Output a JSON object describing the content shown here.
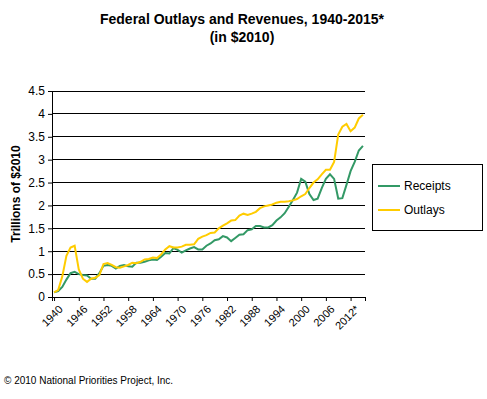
{
  "chart_data": {
    "type": "line",
    "title": "Federal Outlays and Revenues, 1940-2015*",
    "subtitle": "(in $2010)",
    "y_label": "Trillions of $2010",
    "annotations": [
      "© 2010 National Priorities Project, Inc."
    ],
    "categories": [
      "1940",
      null,
      null,
      null,
      null,
      null,
      "1946",
      null,
      null,
      null,
      null,
      null,
      "1952",
      null,
      null,
      null,
      null,
      null,
      "1958",
      null,
      null,
      null,
      null,
      null,
      "1964",
      null,
      null,
      null,
      null,
      null,
      "1970",
      null,
      null,
      null,
      null,
      null,
      "1976",
      null,
      null,
      null,
      null,
      null,
      "1982",
      null,
      null,
      null,
      null,
      null,
      "1988",
      null,
      null,
      null,
      null,
      null,
      "1994",
      null,
      null,
      null,
      null,
      null,
      "2000",
      null,
      null,
      null,
      null,
      null,
      "2006",
      null,
      null,
      null,
      null,
      null,
      "2012*",
      null,
      null,
      null
    ],
    "series": [
      {
        "name": "Receipts",
        "color": "#339966",
        "values": [
          0.1,
          0.13,
          0.22,
          0.38,
          0.52,
          0.55,
          0.5,
          0.48,
          0.47,
          0.4,
          0.4,
          0.52,
          0.68,
          0.7,
          0.68,
          0.62,
          0.68,
          0.7,
          0.67,
          0.66,
          0.75,
          0.75,
          0.77,
          0.8,
          0.82,
          0.81,
          0.88,
          0.96,
          0.95,
          1.07,
          1.03,
          0.97,
          1.02,
          1.06,
          1.09,
          1.04,
          1.04,
          1.12,
          1.17,
          1.24,
          1.26,
          1.33,
          1.3,
          1.22,
          1.29,
          1.36,
          1.37,
          1.46,
          1.48,
          1.55,
          1.55,
          1.52,
          1.52,
          1.57,
          1.67,
          1.74,
          1.83,
          1.97,
          2.12,
          2.28,
          2.58,
          2.52,
          2.25,
          2.12,
          2.15,
          2.38,
          2.58,
          2.68,
          2.58,
          2.15,
          2.16,
          2.45,
          2.75,
          2.95,
          3.2,
          3.3
        ]
      },
      {
        "name": "Outlays",
        "color": "#ffcc00",
        "values": [
          0.1,
          0.15,
          0.45,
          0.9,
          1.08,
          1.12,
          0.6,
          0.4,
          0.33,
          0.4,
          0.42,
          0.48,
          0.72,
          0.74,
          0.7,
          0.65,
          0.64,
          0.67,
          0.7,
          0.75,
          0.74,
          0.77,
          0.82,
          0.83,
          0.86,
          0.85,
          0.93,
          1.04,
          1.11,
          1.08,
          1.08,
          1.1,
          1.14,
          1.14,
          1.15,
          1.27,
          1.32,
          1.35,
          1.4,
          1.41,
          1.5,
          1.56,
          1.61,
          1.67,
          1.68,
          1.78,
          1.82,
          1.79,
          1.82,
          1.86,
          1.94,
          1.98,
          2.0,
          2.02,
          2.06,
          2.08,
          2.08,
          2.09,
          2.11,
          2.14,
          2.2,
          2.25,
          2.38,
          2.5,
          2.57,
          2.68,
          2.78,
          2.78,
          2.95,
          3.55,
          3.72,
          3.78,
          3.62,
          3.7,
          3.9,
          3.98
        ]
      }
    ],
    "ylim": [
      0,
      4.5
    ],
    "yticks": [
      0,
      0.5,
      1,
      1.5,
      2,
      2.5,
      3,
      3.5,
      4,
      4.5
    ],
    "grid": true,
    "legend": "right"
  }
}
